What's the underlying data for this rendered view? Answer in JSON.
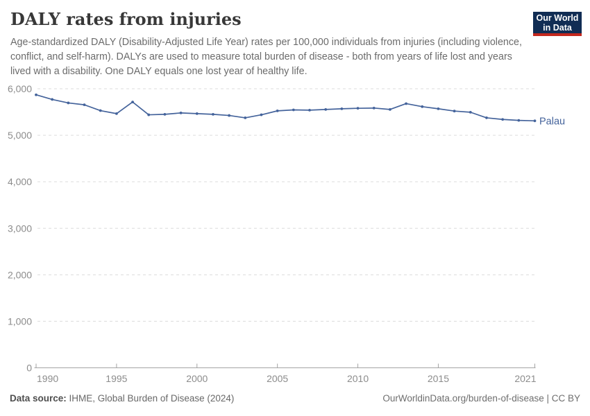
{
  "header": {
    "title": "DALY rates from injuries",
    "subtitle": "Age-standardized DALY (Disability-Adjusted Life Year) rates per 100,000 individuals from injuries (including violence, conflict, and self-harm). DALYs are used to measure total burden of disease - both from years of life lost and years lived with a disability. One DALY equals one lost year of healthy life.",
    "logo": {
      "line1": "Our World",
      "line2": "in Data",
      "bg_color": "#112D54",
      "accent_color": "#C4281E"
    }
  },
  "chart_data": {
    "type": "line",
    "title": "DALY rates from injuries",
    "unit": "DALY rates per 100,000 individuals",
    "x": [
      1990,
      1991,
      1992,
      1993,
      1994,
      1995,
      1996,
      1997,
      1998,
      1999,
      2000,
      2001,
      2002,
      2003,
      2004,
      2005,
      2006,
      2007,
      2008,
      2009,
      2010,
      2011,
      2012,
      2013,
      2014,
      2015,
      2016,
      2017,
      2018,
      2019,
      2020,
      2021
    ],
    "series": [
      {
        "name": "Palau",
        "color": "#44639B",
        "values": [
          5870,
          5770,
          5695,
          5655,
          5530,
          5465,
          5715,
          5440,
          5450,
          5480,
          5465,
          5450,
          5425,
          5375,
          5440,
          5525,
          5545,
          5540,
          5555,
          5570,
          5580,
          5585,
          5555,
          5680,
          5615,
          5570,
          5520,
          5495,
          5375,
          5340,
          5320,
          5310
        ]
      }
    ],
    "ylim": [
      0,
      6000
    ],
    "yticks": [
      0,
      1000,
      2000,
      3000,
      4000,
      5000,
      6000
    ],
    "ytick_labels": [
      "0",
      "1,000",
      "2,000",
      "3,000",
      "4,000",
      "5,000",
      "6,000"
    ],
    "xticks": [
      1990,
      1995,
      2000,
      2005,
      2010,
      2015,
      2021
    ],
    "xtick_labels": [
      "1990",
      "1995",
      "2000",
      "2005",
      "2010",
      "2015",
      "2021"
    ],
    "grid": "horizontal-dashed",
    "legend_position": "end-of-line-label",
    "colors": {
      "gridline": "#dcdcdc",
      "axis": "#a3a3a3",
      "tick_label": "#8c8c8c"
    }
  },
  "footer": {
    "datasource_label": "Data source:",
    "datasource_value": " IHME, Global Burden of Disease (2024)",
    "credit": "OurWorldinData.org/burden-of-disease | CC BY"
  }
}
